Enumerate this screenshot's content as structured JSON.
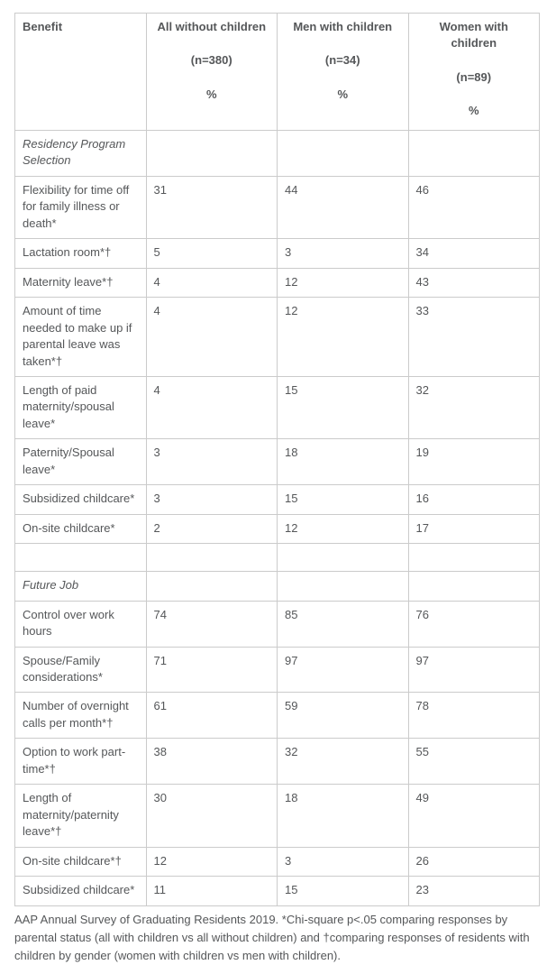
{
  "table": {
    "columns": [
      {
        "label": "Benefit"
      },
      {
        "label": "All without children",
        "n": "(n=380)",
        "unit": "%"
      },
      {
        "label": "Men with children",
        "n": "(n=34)",
        "unit": "%"
      },
      {
        "label": "Women with children",
        "n": "(n=89)",
        "unit": "%"
      }
    ],
    "rows": [
      {
        "type": "section",
        "label": "Residency Program Selection"
      },
      {
        "type": "data",
        "benefit": "Flexibility for time off for family illness or death*",
        "values": [
          "31",
          "44",
          "46"
        ]
      },
      {
        "type": "data",
        "benefit": "Lactation room*†",
        "values": [
          "5",
          "3",
          "34"
        ]
      },
      {
        "type": "data",
        "benefit": "Maternity leave*†",
        "values": [
          "4",
          "12",
          "43"
        ]
      },
      {
        "type": "data",
        "benefit": "Amount of time needed to make up if parental leave was taken*†",
        "values": [
          "4",
          "12",
          "33"
        ]
      },
      {
        "type": "data",
        "benefit": "Length of paid maternity/spousal leave*",
        "values": [
          "4",
          "15",
          "32"
        ]
      },
      {
        "type": "data",
        "benefit": "Paternity/Spousal leave*",
        "values": [
          "3",
          "18",
          "19"
        ]
      },
      {
        "type": "data",
        "benefit": "Subsidized childcare*",
        "values": [
          "3",
          "15",
          "16"
        ]
      },
      {
        "type": "data",
        "benefit": "On-site childcare*",
        "values": [
          "2",
          "12",
          "17"
        ]
      },
      {
        "type": "spacer"
      },
      {
        "type": "section",
        "label": "Future Job"
      },
      {
        "type": "data",
        "benefit": "Control over work hours",
        "values": [
          "74",
          "85",
          "76"
        ]
      },
      {
        "type": "data",
        "benefit": "Spouse/Family considerations*",
        "values": [
          "71",
          "97",
          "97"
        ]
      },
      {
        "type": "data",
        "benefit": "Number of overnight calls per month*†",
        "values": [
          "61",
          "59",
          "78"
        ]
      },
      {
        "type": "data",
        "benefit": "Option to work part-time*†",
        "values": [
          "38",
          "32",
          "55"
        ]
      },
      {
        "type": "data",
        "benefit": "Length of maternity/paternity leave*†",
        "values": [
          "30",
          "18",
          "49"
        ]
      },
      {
        "type": "data",
        "benefit": "On-site childcare*†",
        "values": [
          "12",
          "3",
          "26"
        ]
      },
      {
        "type": "data",
        "benefit": "Subsidized childcare*",
        "values": [
          "11",
          "15",
          "23"
        ]
      }
    ]
  },
  "footnote": "AAP Annual Survey of Graduating Residents 2019. *Chi-square p<.05 comparing responses by parental status (all with children vs all without children) and †comparing responses of residents with children by gender (women with children vs men with children)."
}
